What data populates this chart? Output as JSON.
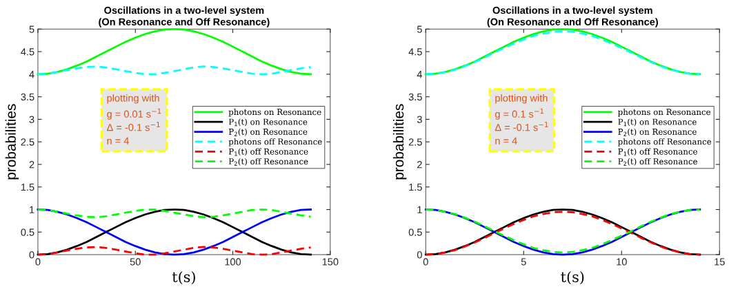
{
  "chart_data": [
    {
      "type": "line",
      "title": "Oscillations in a two-level system\n(On Resonance and Off Resonance)",
      "xlabel": "t(s)",
      "ylabel": "probabilities",
      "x": [
        0,
        5,
        10,
        15,
        20,
        25,
        30,
        35,
        40,
        45,
        50,
        55,
        60,
        65,
        70,
        75,
        80,
        85,
        90,
        95,
        100,
        105,
        110,
        115,
        120,
        125,
        130,
        135,
        140
      ],
      "xlim": [
        0,
        150
      ],
      "xticks": [
        0,
        50,
        100,
        150
      ],
      "ylim": [
        0,
        5
      ],
      "yticks": [
        0,
        0.5,
        1,
        1.5,
        2,
        2.5,
        3,
        3.5,
        4,
        4.5,
        5
      ],
      "grid": false,
      "legend": "center right",
      "annotations": [
        "plotting with\ng = 0.01 s$^{−1}$\nΔ = -0.1 s$^{−1}$\nn = 4"
      ],
      "series": [
        {
          "name": "photons on Resonance",
          "color": "#00ff00",
          "line_style": "solid",
          "values": [
            4,
            4.01,
            4.05,
            4.11,
            4.19,
            4.28,
            4.39,
            4.5,
            4.61,
            4.72,
            4.81,
            4.89,
            4.95,
            4.99,
            5,
            4.99,
            4.95,
            4.89,
            4.81,
            4.72,
            4.61,
            4.5,
            4.39,
            4.28,
            4.19,
            4.11,
            4.05,
            4.01,
            4
          ]
        },
        {
          "name": "P$_{1}$(t) on Resonance",
          "color": "#000000",
          "line_style": "solid",
          "values": [
            0,
            0.01,
            0.05,
            0.11,
            0.19,
            0.28,
            0.39,
            0.5,
            0.61,
            0.72,
            0.81,
            0.89,
            0.95,
            0.99,
            1,
            0.99,
            0.95,
            0.89,
            0.81,
            0.72,
            0.61,
            0.5,
            0.39,
            0.28,
            0.19,
            0.11,
            0.05,
            0.01,
            0
          ]
        },
        {
          "name": "P$_{2}$(t) on Resonance",
          "color": "#0000ff",
          "line_style": "solid",
          "values": [
            1,
            0.99,
            0.95,
            0.89,
            0.81,
            0.72,
            0.61,
            0.5,
            0.39,
            0.28,
            0.19,
            0.11,
            0.05,
            0.01,
            0,
            0.01,
            0.05,
            0.11,
            0.19,
            0.28,
            0.39,
            0.5,
            0.61,
            0.72,
            0.81,
            0.89,
            0.95,
            0.99,
            1
          ]
        },
        {
          "name": "photons off Resonance",
          "color": "#00ffff",
          "line_style": "dashed",
          "values": [
            4,
            4.01,
            4.05,
            4.09,
            4.13,
            4.16,
            4.17,
            4.15,
            4.11,
            4.07,
            4.03,
            4,
            4,
            4.03,
            4.07,
            4.11,
            4.15,
            4.17,
            4.16,
            4.13,
            4.09,
            4.05,
            4.01,
            4,
            4.01,
            4.05,
            4.09,
            4.13,
            4.16
          ]
        },
        {
          "name": "P$_{1}$(t) off Resonance",
          "color": "#ff0000",
          "line_style": "dashed",
          "values": [
            0,
            0.01,
            0.05,
            0.09,
            0.13,
            0.16,
            0.17,
            0.15,
            0.11,
            0.07,
            0.03,
            0,
            0,
            0.03,
            0.07,
            0.11,
            0.15,
            0.17,
            0.16,
            0.13,
            0.09,
            0.05,
            0.01,
            0,
            0.01,
            0.05,
            0.09,
            0.13,
            0.16
          ]
        },
        {
          "name": "P$_{2}$(t) off Resonance",
          "color": "#00ff00",
          "line_style": "dashed",
          "values": [
            1,
            0.99,
            0.95,
            0.91,
            0.87,
            0.84,
            0.83,
            0.85,
            0.89,
            0.93,
            0.97,
            1,
            1,
            0.97,
            0.93,
            0.89,
            0.85,
            0.83,
            0.84,
            0.87,
            0.91,
            0.95,
            0.99,
            1,
            0.99,
            0.95,
            0.91,
            0.87,
            0.84
          ]
        }
      ]
    },
    {
      "type": "line",
      "title": "Oscillations in a two-level system\n(On Resonance and Off Resonance)",
      "xlabel": "t(s)",
      "ylabel": "probabilities",
      "x": [
        0,
        0.5,
        1,
        1.5,
        2,
        2.5,
        3,
        3.5,
        4,
        4.5,
        5,
        5.5,
        6,
        6.5,
        7,
        7.5,
        8,
        8.5,
        9,
        9.5,
        10,
        10.5,
        11,
        11.5,
        12,
        12.5,
        13,
        13.5,
        14
      ],
      "xlim": [
        0,
        15
      ],
      "xticks": [
        0,
        5,
        10,
        15
      ],
      "ylim": [
        0,
        5
      ],
      "yticks": [
        0,
        0.5,
        1,
        1.5,
        2,
        2.5,
        3,
        3.5,
        4,
        4.5,
        5
      ],
      "grid": false,
      "legend": "center right",
      "annotations": [
        "plotting with\ng = 0.1 s$^{−1}$\nΔ = -0.1 s$^{−1}$\nn = 4"
      ],
      "series": [
        {
          "name": "photons on Resonance",
          "color": "#00ff00",
          "line_style": "solid",
          "values": [
            4,
            4.01,
            4.05,
            4.11,
            4.19,
            4.28,
            4.39,
            4.5,
            4.61,
            4.72,
            4.81,
            4.89,
            4.95,
            4.99,
            5,
            4.99,
            4.95,
            4.89,
            4.81,
            4.72,
            4.61,
            4.5,
            4.39,
            4.28,
            4.19,
            4.11,
            4.05,
            4.01,
            4
          ]
        },
        {
          "name": "P$_{1}$(t) on Resonance",
          "color": "#000000",
          "line_style": "solid",
          "values": [
            0,
            0.01,
            0.05,
            0.11,
            0.19,
            0.28,
            0.39,
            0.5,
            0.61,
            0.72,
            0.81,
            0.89,
            0.95,
            0.99,
            1,
            0.99,
            0.95,
            0.89,
            0.81,
            0.72,
            0.61,
            0.5,
            0.39,
            0.28,
            0.19,
            0.11,
            0.05,
            0.01,
            0
          ]
        },
        {
          "name": "P$_{2}$(t) on Resonance",
          "color": "#0000ff",
          "line_style": "solid",
          "values": [
            1,
            0.99,
            0.95,
            0.89,
            0.81,
            0.72,
            0.61,
            0.5,
            0.39,
            0.28,
            0.19,
            0.11,
            0.05,
            0.01,
            0,
            0.01,
            0.05,
            0.11,
            0.19,
            0.28,
            0.39,
            0.5,
            0.61,
            0.72,
            0.81,
            0.89,
            0.95,
            0.99,
            1
          ]
        },
        {
          "name": "photons off Resonance",
          "color": "#00ffff",
          "line_style": "dashed",
          "values": [
            4,
            4.01,
            4.05,
            4.1,
            4.18,
            4.27,
            4.37,
            4.48,
            4.58,
            4.68,
            4.77,
            4.85,
            4.9,
            4.94,
            4.95,
            4.94,
            4.9,
            4.85,
            4.77,
            4.68,
            4.58,
            4.48,
            4.37,
            4.27,
            4.18,
            4.1,
            4.05,
            4.01,
            4
          ]
        },
        {
          "name": "P$_{1}$(t) off Resonance",
          "color": "#ff0000",
          "line_style": "dashed",
          "values": [
            0,
            0.01,
            0.05,
            0.1,
            0.18,
            0.27,
            0.37,
            0.48,
            0.58,
            0.68,
            0.77,
            0.85,
            0.9,
            0.94,
            0.95,
            0.94,
            0.9,
            0.85,
            0.77,
            0.68,
            0.58,
            0.48,
            0.37,
            0.27,
            0.18,
            0.1,
            0.05,
            0.01,
            0
          ]
        },
        {
          "name": "P$_{2}$(t) off Resonance",
          "color": "#00ff00",
          "line_style": "dashed",
          "values": [
            1,
            0.99,
            0.95,
            0.9,
            0.82,
            0.73,
            0.63,
            0.52,
            0.42,
            0.32,
            0.23,
            0.15,
            0.1,
            0.06,
            0.05,
            0.06,
            0.1,
            0.15,
            0.23,
            0.32,
            0.42,
            0.52,
            0.63,
            0.73,
            0.82,
            0.9,
            0.95,
            0.99,
            1
          ]
        }
      ]
    }
  ]
}
